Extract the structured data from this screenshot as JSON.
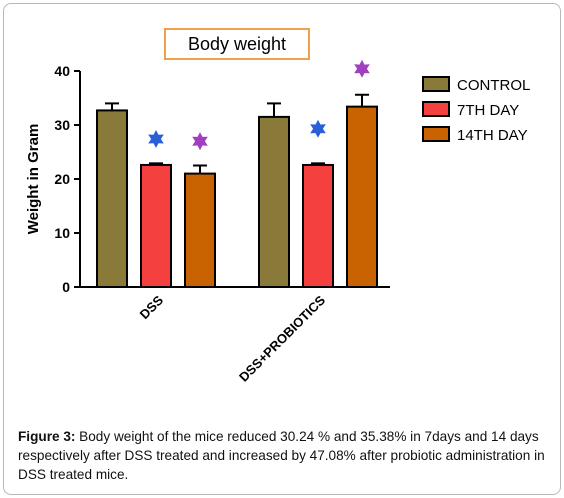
{
  "chart_data": {
    "type": "bar",
    "title": "Body weight",
    "ylabel": "Weight in Gram",
    "xlabel": "",
    "ylim": [
      0,
      40
    ],
    "yticks": [
      "0",
      "10",
      "20",
      "30",
      "40"
    ],
    "categories": [
      "DSS",
      "DSS+PROBIOTICS"
    ],
    "series": [
      {
        "name": "CONTROL",
        "color": "#8a7a3a",
        "values": [
          32.7,
          31.5
        ],
        "errors": [
          1.3,
          2.5
        ]
      },
      {
        "name": "7TH DAY",
        "color": "#f54040",
        "values": [
          22.6,
          22.6
        ],
        "errors": [
          0.3,
          0.3
        ]
      },
      {
        "name": "14TH DAY",
        "color": "#c96200",
        "values": [
          21.0,
          33.4
        ],
        "errors": [
          1.5,
          2.2
        ]
      }
    ],
    "markers": [
      {
        "category": 0,
        "series": 1,
        "y": 27.4,
        "color": "#2b5fd8",
        "symbol": "star"
      },
      {
        "category": 0,
        "series": 2,
        "y": 27.0,
        "color": "#a040c0",
        "symbol": "star"
      },
      {
        "category": 1,
        "series": 1,
        "y": 29.3,
        "color": "#2b5fd8",
        "symbol": "star"
      },
      {
        "category": 1,
        "series": 2,
        "y": 40.4,
        "color": "#a040c0",
        "symbol": "star"
      }
    ],
    "legend_position": "right",
    "grid": false
  },
  "caption": {
    "label": "Figure 3:",
    "text": " Body weight of the mice reduced 30.24 % and 35.38% in 7days and 14 days respectively after DSS treated and increased by 47.08% after probiotic administration in DSS treated mice."
  }
}
